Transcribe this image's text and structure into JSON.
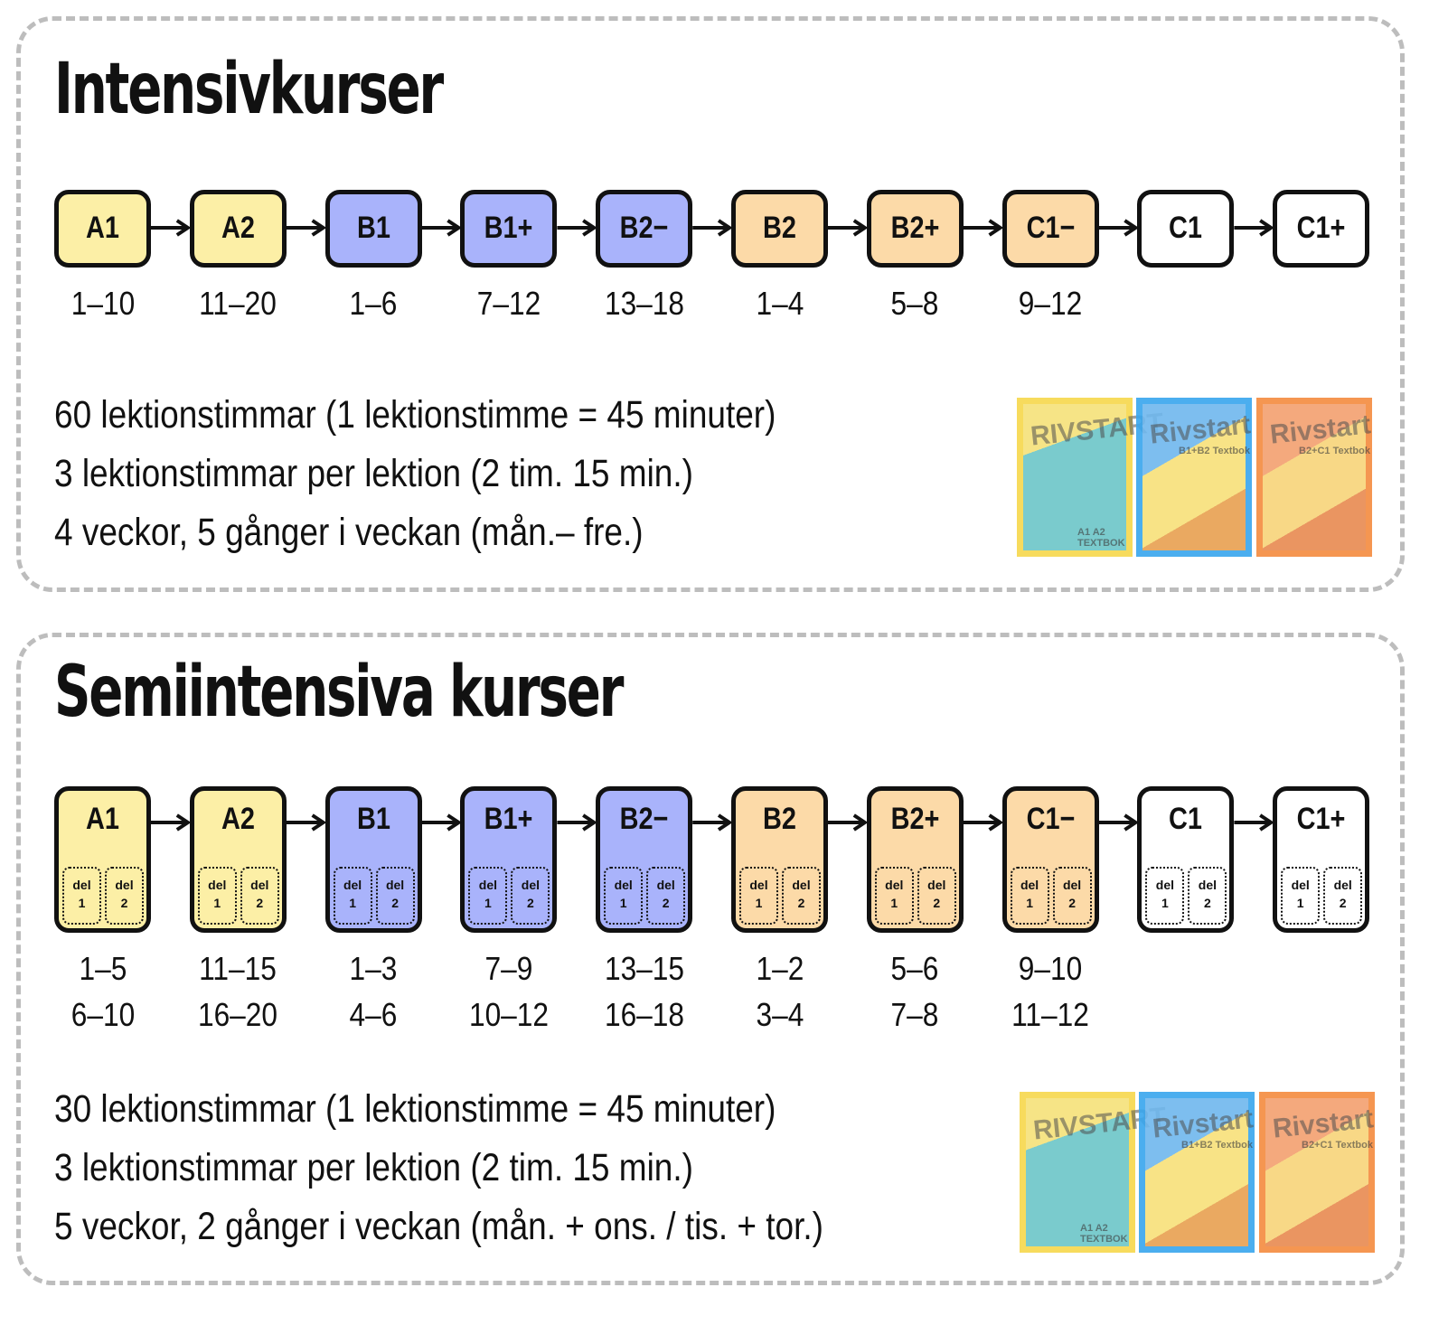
{
  "sections": [
    {
      "title": "Intensivkurser",
      "levels": [
        {
          "label": "A1",
          "color": "#fcefa6"
        },
        {
          "label": "A2",
          "color": "#fcefa6"
        },
        {
          "label": "B1",
          "color": "#a9b3fb"
        },
        {
          "label": "B1+",
          "color": "#a9b3fb"
        },
        {
          "label": "B2−",
          "color": "#a9b3fb"
        },
        {
          "label": "B2",
          "color": "#fcdaa8"
        },
        {
          "label": "B2+",
          "color": "#fcdaa8"
        },
        {
          "label": "C1−",
          "color": "#fcdaa8"
        },
        {
          "label": "C1",
          "color": "#ffffff"
        },
        {
          "label": "C1+",
          "color": "#ffffff"
        }
      ],
      "chapters": [
        [
          "1–10"
        ],
        [
          "11–20"
        ],
        [
          "1–6"
        ],
        [
          "7–12"
        ],
        [
          "13–18"
        ],
        [
          "1–4"
        ],
        [
          "5–8"
        ],
        [
          "9–12"
        ]
      ],
      "info": [
        "60 lektionstimmar (1 lektionstimme = 45 minuter)",
        "3 lektionstimmar per lektion (2 tim. 15 min.)",
        "4 veckor, 5 gånger i veckan (mån.– fre.)"
      ],
      "books": [
        {
          "title": "RIVSTART",
          "subtitle": "A1 A2 TEXTBOK",
          "color": "#f7d84c"
        },
        {
          "title": "Rivstart",
          "subtitle": "B1+B2 Textbok",
          "color": "#38a6ee"
        },
        {
          "title": "Rivstart",
          "subtitle": "B2+C1 Textbok",
          "color": "#f58b3f"
        }
      ]
    },
    {
      "title": "Semiintensiva kurser",
      "levels": [
        {
          "label": "A1",
          "color": "#fcefa6"
        },
        {
          "label": "A2",
          "color": "#fcefa6"
        },
        {
          "label": "B1",
          "color": "#a9b3fb"
        },
        {
          "label": "B1+",
          "color": "#a9b3fb"
        },
        {
          "label": "B2−",
          "color": "#a9b3fb"
        },
        {
          "label": "B2",
          "color": "#fcdaa8"
        },
        {
          "label": "B2+",
          "color": "#fcdaa8"
        },
        {
          "label": "C1−",
          "color": "#fcdaa8"
        },
        {
          "label": "C1",
          "color": "#ffffff"
        },
        {
          "label": "C1+",
          "color": "#ffffff"
        }
      ],
      "parts": [
        {
          "label": "del",
          "number": "1"
        },
        {
          "label": "del",
          "number": "2"
        }
      ],
      "chapters": [
        [
          "1–5",
          "6–10"
        ],
        [
          "11–15",
          "16–20"
        ],
        [
          "1–3",
          "4–6"
        ],
        [
          "7–9",
          "10–12"
        ],
        [
          "13–15",
          "16–18"
        ],
        [
          "1–2",
          "3–4"
        ],
        [
          "5–6",
          "7–8"
        ],
        [
          "9–10",
          "11–12"
        ]
      ],
      "info": [
        "30 lektionstimmar (1 lektionstimme = 45 minuter)",
        "3 lektionstimmar per lektion (2 tim. 15 min.)",
        "5 veckor, 2 gånger i veckan (mån. + ons. / tis. + tor.)"
      ],
      "books": [
        {
          "title": "RIVSTART",
          "subtitle": "A1 A2 TEXTBOK",
          "color": "#f7d84c"
        },
        {
          "title": "Rivstart",
          "subtitle": "B1+B2 Textbok",
          "color": "#38a6ee"
        },
        {
          "title": "Rivstart",
          "subtitle": "B2+C1 Textbok",
          "color": "#f58b3f"
        }
      ]
    }
  ]
}
